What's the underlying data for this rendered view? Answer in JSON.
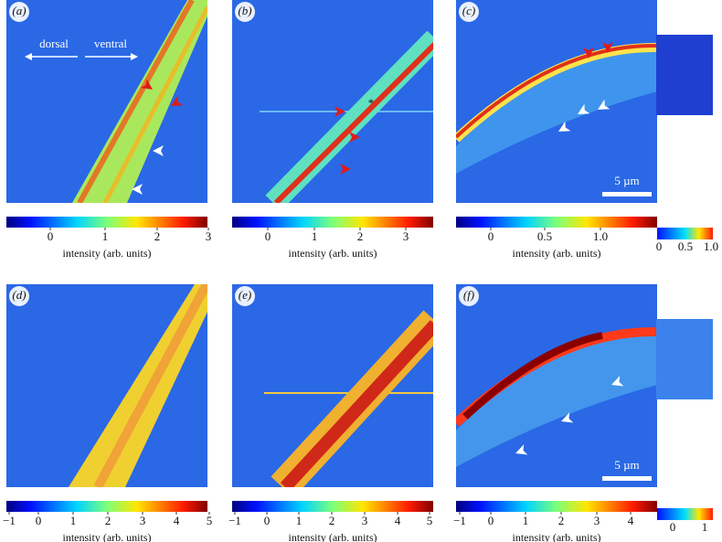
{
  "panels": [
    {
      "label": "(a)",
      "annotations": [
        "dorsal",
        "ventral"
      ],
      "colorbar": {
        "ticks": [
          "0",
          "1",
          "2",
          "3"
        ],
        "label": "intensity (arb. units)"
      }
    },
    {
      "label": "(b)",
      "annotations": [
        "*"
      ],
      "colorbar": {
        "ticks": [
          "0",
          "1",
          "2",
          "3"
        ],
        "label": "intensity (arb. units)"
      }
    },
    {
      "label": "(c)",
      "scale_bar": "5 µm",
      "colorbar": {
        "ticks": [
          "0",
          "0.5",
          "1.0"
        ],
        "label": "intensity (arb. units)"
      },
      "inset_colorbar": {
        "ticks": [
          "0",
          "0.5",
          "1.0"
        ]
      }
    },
    {
      "label": "(d)",
      "colorbar": {
        "ticks": [
          "−1",
          "0",
          "1",
          "2",
          "3",
          "4",
          "5"
        ],
        "label": "intensity (arb. units)"
      }
    },
    {
      "label": "(e)",
      "colorbar": {
        "ticks": [
          "−1",
          "0",
          "1",
          "2",
          "3",
          "4",
          "5"
        ],
        "label": "intensity (arb. units)"
      }
    },
    {
      "label": "(f)",
      "scale_bar": "5 µm",
      "colorbar": {
        "ticks": [
          "−1",
          "0",
          "1",
          "2",
          "3",
          "4"
        ],
        "label": "intensity (arb. units)"
      },
      "inset_colorbar": {
        "ticks": [
          "0",
          "1"
        ]
      }
    }
  ]
}
